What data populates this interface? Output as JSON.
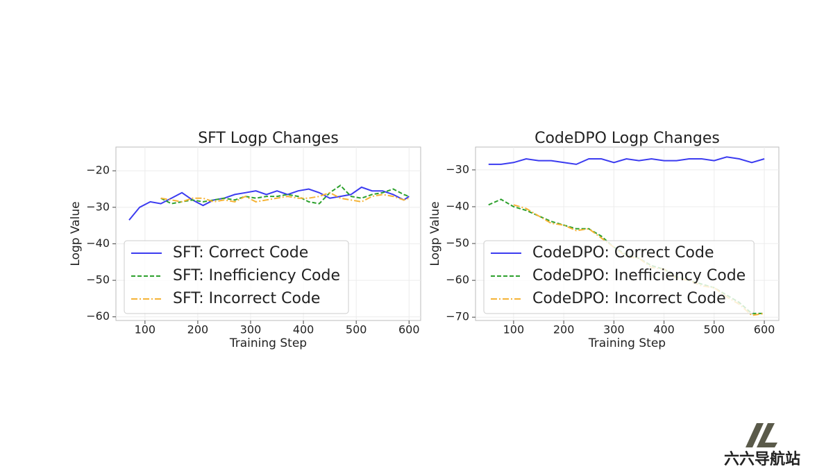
{
  "chart_data": [
    {
      "type": "line",
      "title": "SFT Logp Changes",
      "x_label": "Training Step",
      "y_label": "Logp Value",
      "x": [
        70,
        90,
        110,
        130,
        150,
        170,
        190,
        210,
        230,
        250,
        270,
        290,
        310,
        330,
        350,
        370,
        390,
        410,
        430,
        450,
        470,
        490,
        510,
        530,
        550,
        570,
        590,
        600
      ],
      "series": [
        {
          "name": "SFT: Correct Code",
          "color": "#3b3bf0",
          "linestyle": "solid",
          "values": [
            -33.5,
            -30,
            -28.5,
            -29,
            -27.5,
            -26,
            -28,
            -29.5,
            -28,
            -27.5,
            -26.5,
            -26,
            -25.5,
            -26.5,
            -25.5,
            -26.5,
            -25.5,
            -25,
            -26,
            -27.5,
            -27,
            -26.5,
            -24.5,
            -25.5,
            -25.5,
            -26.5,
            -28,
            -27
          ]
        },
        {
          "name": "SFT: Inefficiency Code",
          "color": "#2ca02c",
          "linestyle": "dashed",
          "values": [
            null,
            null,
            null,
            -27.5,
            -29,
            -28.5,
            -28,
            -28.5,
            -28,
            -27.5,
            -28,
            -27,
            -27.5,
            -27,
            -27,
            -26.5,
            -27,
            -28.5,
            -29,
            -26,
            -24,
            -27,
            -27.5,
            -26.5,
            -26,
            -25,
            -26.5,
            -27
          ]
        },
        {
          "name": "SFT: Incorrect Code",
          "color": "#f5b335",
          "linestyle": "dashdot",
          "values": [
            null,
            null,
            null,
            -27.5,
            -28,
            -28.5,
            -27.5,
            -27.5,
            -28.5,
            -28,
            -28.5,
            -27,
            -28.5,
            -28,
            -27.5,
            -27,
            -27.5,
            -27.5,
            -27,
            -26,
            -27.5,
            -28,
            -28.5,
            -27,
            -26.5,
            -27,
            -28,
            -27.5
          ]
        }
      ],
      "xlim": [
        45,
        622
      ],
      "ylim": [
        -61,
        -13.5
      ],
      "xticks": [
        100,
        200,
        300,
        400,
        500,
        600
      ],
      "yticks": [
        {
          "value": -20,
          "label": "−20"
        },
        {
          "value": -30,
          "label": "−30"
        },
        {
          "value": -40,
          "label": "−40"
        },
        {
          "value": -50,
          "label": "−50"
        },
        {
          "value": -60,
          "label": "−60"
        }
      ],
      "grid": true,
      "legend": "lower left"
    },
    {
      "type": "line",
      "title": "CodeDPO Logp Changes",
      "x_label": "Training Step",
      "y_label": "Logp Value",
      "x": [
        50,
        75,
        100,
        125,
        150,
        175,
        200,
        225,
        250,
        275,
        300,
        325,
        350,
        375,
        400,
        425,
        450,
        475,
        500,
        525,
        550,
        575,
        600
      ],
      "series": [
        {
          "name": "CodeDPO: Correct Code",
          "color": "#3b3bf0",
          "linestyle": "solid",
          "values": [
            -28.5,
            -28.5,
            -28,
            -27,
            -27.5,
            -27.5,
            -28,
            -28.5,
            -27,
            -27,
            -28,
            -27,
            -27.5,
            -27,
            -27.5,
            -27.5,
            -27,
            -27,
            -27.5,
            -26.5,
            -27,
            -28,
            -27
          ]
        },
        {
          "name": "CodeDPO: Inefficiency Code",
          "color": "#2ca02c",
          "linestyle": "dashed",
          "values": [
            -39.5,
            -38,
            -40,
            -41,
            -42.5,
            -44,
            -45,
            -46,
            -46,
            -48,
            -51,
            -53,
            -54,
            -56,
            -57,
            -59,
            -60,
            -61,
            -62,
            -64,
            -66,
            -69,
            -69
          ]
        },
        {
          "name": "CodeDPO: Incorrect Code",
          "color": "#f5b335",
          "linestyle": "dashdot",
          "values": [
            null,
            null,
            -39.5,
            -40.5,
            -42.5,
            -44.5,
            -45,
            -46.5,
            -46,
            -48.5,
            -51,
            -53.5,
            -54,
            -56.5,
            -57,
            -59.5,
            -60,
            -61.5,
            -62,
            -64.5,
            -66.5,
            -69.5,
            -69
          ]
        }
      ],
      "xlim": [
        24,
        629
      ],
      "ylim": [
        -70.9,
        -23.8
      ],
      "xticks": [
        100,
        200,
        300,
        400,
        500,
        600
      ],
      "yticks": [
        {
          "value": -30,
          "label": "−30"
        },
        {
          "value": -40,
          "label": "−40"
        },
        {
          "value": -50,
          "label": "−50"
        },
        {
          "value": -60,
          "label": "−60"
        },
        {
          "value": -70,
          "label": "−70"
        }
      ],
      "grid": true,
      "legend": "lower left"
    }
  ],
  "watermark": "六六导航站"
}
